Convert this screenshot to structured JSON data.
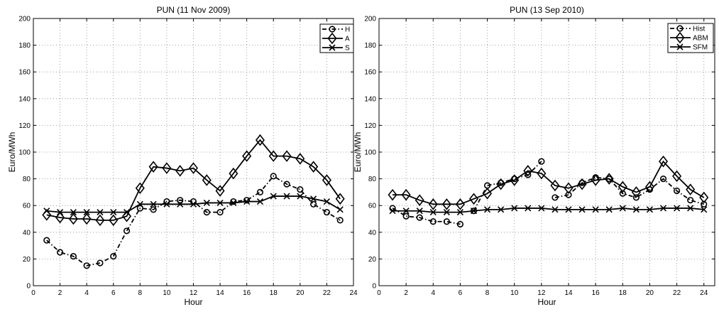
{
  "chart_data": [
    {
      "type": "line",
      "title": "PUN (11 Nov 2009)",
      "xlabel": "Hour",
      "ylabel": "Euro/MWh",
      "xlim": [
        0,
        24
      ],
      "ylim": [
        0,
        200
      ],
      "xticks": [
        "0",
        "2",
        "4",
        "6",
        "8",
        "10",
        "12",
        "14",
        "16",
        "18",
        "20",
        "22",
        "24"
      ],
      "yticks": [
        "0",
        "20",
        "40",
        "60",
        "80",
        "100",
        "120",
        "140",
        "160",
        "180",
        "200"
      ],
      "grid": true,
      "legend_position": "top-right",
      "legend_labels": [
        "H",
        "A",
        "S"
      ],
      "x": [
        1,
        2,
        3,
        4,
        5,
        6,
        7,
        8,
        9,
        10,
        11,
        12,
        13,
        14,
        15,
        16,
        17,
        18,
        19,
        20,
        21,
        22,
        23
      ],
      "series": [
        {
          "marker": "circle",
          "dash": "dashdot",
          "values": [
            34,
            25,
            22,
            15,
            17,
            22,
            41,
            58,
            57,
            63,
            64,
            63,
            55,
            55,
            63,
            64,
            70,
            82,
            76,
            72,
            61,
            55,
            49
          ]
        },
        {
          "marker": "diamond",
          "dash": "solid",
          "values": [
            53,
            51,
            50,
            50,
            49,
            49,
            52,
            73,
            89,
            88,
            86,
            88,
            79,
            71,
            84,
            97,
            109,
            97,
            97,
            95,
            89,
            79,
            65
          ]
        },
        {
          "marker": "x",
          "dash": "solid",
          "values": [
            56,
            55,
            55,
            55,
            55,
            55,
            55,
            61,
            61,
            61,
            61,
            61,
            62,
            62,
            62,
            63,
            63,
            67,
            67,
            67,
            65,
            63,
            57
          ]
        }
      ]
    },
    {
      "type": "line",
      "title": "PUN (13 Sep 2010)",
      "xlabel": "Hour",
      "ylabel": "Euro/MWh",
      "xlim": [
        0,
        24.8
      ],
      "ylim": [
        0,
        200
      ],
      "xticks": [
        "0",
        "2",
        "4",
        "6",
        "8",
        "10",
        "12",
        "14",
        "16",
        "18",
        "20",
        "22",
        "24"
      ],
      "yticks": [
        "0",
        "20",
        "40",
        "60",
        "80",
        "100",
        "120",
        "140",
        "160",
        "180",
        "200"
      ],
      "grid": true,
      "legend_position": "top-right",
      "legend_labels": [
        "Hist",
        "ABM",
        "SFM"
      ],
      "x": [
        1,
        2,
        3,
        4,
        5,
        6,
        7,
        8,
        9,
        10,
        11,
        12,
        13,
        14,
        15,
        16,
        17,
        18,
        19,
        20,
        21,
        22,
        23,
        24
      ],
      "series": [
        {
          "marker": "circle",
          "dash": "dashdot",
          "segments": [
            [
              1,
              6
            ],
            [
              7,
              12
            ],
            [
              13,
              24
            ]
          ],
          "values": [
            58,
            52,
            51,
            48,
            48,
            46,
            56,
            75,
            77,
            80,
            83,
            93,
            66,
            68,
            77,
            81,
            80,
            69,
            66,
            72,
            80,
            71,
            64,
            61
          ]
        },
        {
          "marker": "diamond",
          "dash": "solid",
          "values": [
            68,
            68,
            64,
            61,
            61,
            61,
            65,
            69,
            76,
            79,
            86,
            84,
            75,
            73,
            76,
            79,
            80,
            74,
            70,
            74,
            93,
            82,
            72,
            66
          ]
        },
        {
          "marker": "x",
          "dash": "solid",
          "values": [
            56,
            56,
            56,
            55,
            55,
            55,
            56,
            57,
            57,
            58,
            58,
            58,
            57,
            57,
            57,
            57,
            57,
            58,
            57,
            57,
            58,
            58,
            58,
            57
          ]
        }
      ]
    }
  ]
}
